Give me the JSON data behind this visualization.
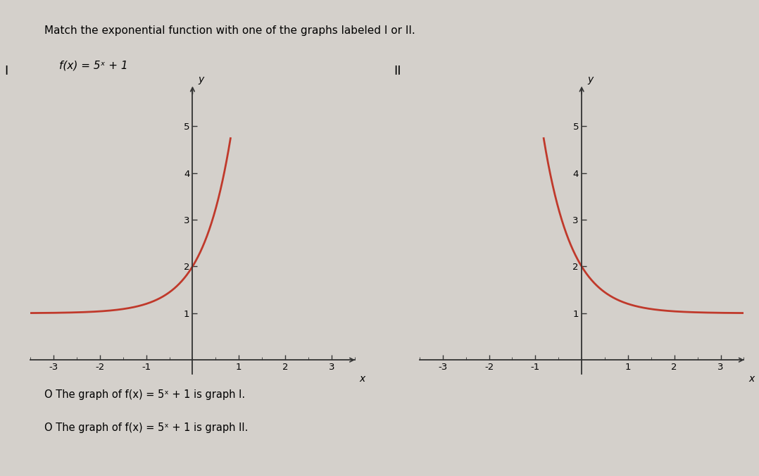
{
  "title": "Match the exponential function with one of the graphs labeled I or II.",
  "func_label": "f(x) = 5ˣ + 1",
  "graph1_label": "I",
  "graph2_label": "II",
  "xlim": [
    -3.5,
    3.5
  ],
  "ylim": [
    -0.3,
    5.8
  ],
  "xticks": [
    -3,
    -2,
    -1,
    1,
    2,
    3
  ],
  "yticks": [
    1,
    2,
    3,
    4,
    5
  ],
  "curve_color": "#c0392b",
  "curve_linewidth": 2.0,
  "axis_color": "#333333",
  "bg_color": "#d4d0cb",
  "answer1": "O The graph of f(x) = 5ˣ + 1 is graph I.",
  "answer2": "O The graph of f(x) = 5ˣ + 1 is graph II."
}
